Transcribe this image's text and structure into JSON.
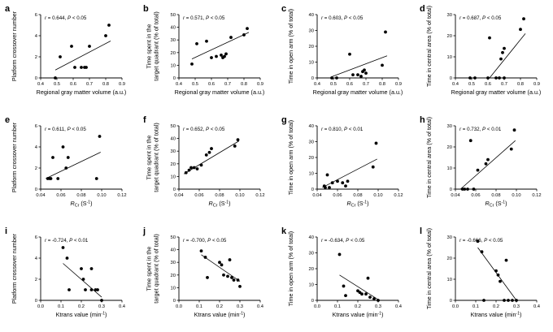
{
  "chart_data": [
    {
      "letter": "a",
      "type": "scatter",
      "stat": "r = 0.644, P < 0.05",
      "ylabel": [
        "Platform crossover number"
      ],
      "xlabel": "Regional gray matter volume (a.u.)",
      "xlim": [
        0.4,
        0.9
      ],
      "ylim": [
        0,
        6
      ],
      "xticks": [
        "0.4",
        "0.5",
        "0.6",
        "0.7",
        "0.8",
        "0.9"
      ],
      "yticks": [
        "0",
        "2",
        "4",
        "6"
      ],
      "points": [
        [
          0.49,
          0
        ],
        [
          0.52,
          2
        ],
        [
          0.59,
          3
        ],
        [
          0.61,
          1
        ],
        [
          0.65,
          1
        ],
        [
          0.67,
          1
        ],
        [
          0.68,
          1
        ],
        [
          0.7,
          3
        ],
        [
          0.8,
          4
        ],
        [
          0.82,
          5
        ]
      ],
      "fit": [
        [
          0.49,
          0.75
        ],
        [
          0.83,
          3.5
        ]
      ]
    },
    {
      "letter": "b",
      "type": "scatter",
      "stat": "r = 0.571, P < 0.05",
      "ylabel": [
        "Time spent in the",
        "target quadrant (% of total)"
      ],
      "xlabel": "Regional gray matter volume (a.u.)",
      "xlim": [
        0.4,
        0.9
      ],
      "ylim": [
        0,
        50
      ],
      "xticks": [
        "0.4",
        "0.5",
        "0.6",
        "0.7",
        "0.8",
        "0.9"
      ],
      "yticks": [
        "0",
        "10",
        "20",
        "30",
        "40",
        "50"
      ],
      "points": [
        [
          0.48,
          11
        ],
        [
          0.51,
          27
        ],
        [
          0.57,
          29
        ],
        [
          0.6,
          16
        ],
        [
          0.63,
          17
        ],
        [
          0.66,
          18
        ],
        [
          0.67,
          16
        ],
        [
          0.68,
          17
        ],
        [
          0.69,
          19
        ],
        [
          0.72,
          32
        ],
        [
          0.8,
          34
        ],
        [
          0.82,
          39
        ]
      ],
      "fit": [
        [
          0.48,
          15
        ],
        [
          0.83,
          36
        ]
      ]
    },
    {
      "letter": "c",
      "type": "scatter",
      "stat": "r = 0.603, P < 0.05",
      "ylabel": [
        "Time in open arm (% of total)"
      ],
      "xlabel": "Regional gray matter volume (a.u.)",
      "xlim": [
        0.4,
        0.9
      ],
      "ylim": [
        0,
        40
      ],
      "xticks": [
        "0.4",
        "0.5",
        "0.6",
        "0.7",
        "0.8",
        "0.9"
      ],
      "yticks": [
        "0",
        "10",
        "20",
        "30",
        "40"
      ],
      "points": [
        [
          0.49,
          0
        ],
        [
          0.52,
          0
        ],
        [
          0.6,
          15
        ],
        [
          0.62,
          2
        ],
        [
          0.65,
          2
        ],
        [
          0.67,
          1
        ],
        [
          0.68,
          4
        ],
        [
          0.69,
          5
        ],
        [
          0.7,
          3
        ],
        [
          0.8,
          8
        ],
        [
          0.82,
          29
        ]
      ],
      "fit": [
        [
          0.49,
          0.8
        ],
        [
          0.83,
          14
        ]
      ]
    },
    {
      "letter": "d",
      "type": "scatter",
      "stat": "r = 0.687, P < 0.05",
      "ylabel": [
        "Time in central area (% of total)"
      ],
      "xlabel": "Regional gray matter volume (a.u.)",
      "xlim": [
        0.4,
        0.9
      ],
      "ylim": [
        0,
        30
      ],
      "xticks": [
        "0.4",
        "0.5",
        "0.6",
        "0.7",
        "0.8",
        "0.9"
      ],
      "yticks": [
        "0",
        "10",
        "20",
        "30"
      ],
      "points": [
        [
          0.49,
          0
        ],
        [
          0.52,
          0
        ],
        [
          0.6,
          0
        ],
        [
          0.61,
          19
        ],
        [
          0.65,
          0
        ],
        [
          0.67,
          0
        ],
        [
          0.68,
          9
        ],
        [
          0.69,
          12
        ],
        [
          0.7,
          0
        ],
        [
          0.7,
          14
        ],
        [
          0.8,
          23
        ],
        [
          0.82,
          28
        ]
      ],
      "fit": [
        [
          0.61,
          0
        ],
        [
          0.83,
          21
        ]
      ]
    },
    {
      "letter": "e",
      "type": "scatter",
      "stat": "r = 0.611, P < 0.05",
      "ylabel": [
        "Platform crossover number"
      ],
      "xlabel": "R_Cr (S-1)",
      "xlim": [
        0.04,
        0.12
      ],
      "ylim": [
        0,
        6
      ],
      "xticks": [
        "0.04",
        "0.06",
        "0.08",
        "0.10",
        "0.12"
      ],
      "yticks": [
        "0",
        "2",
        "4",
        "6"
      ],
      "points": [
        [
          0.047,
          1
        ],
        [
          0.049,
          1
        ],
        [
          0.05,
          1
        ],
        [
          0.052,
          3
        ],
        [
          0.057,
          1
        ],
        [
          0.062,
          4
        ],
        [
          0.065,
          2
        ],
        [
          0.067,
          3
        ],
        [
          0.095,
          1
        ],
        [
          0.098,
          5
        ]
      ],
      "fit": [
        [
          0.045,
          1
        ],
        [
          0.099,
          3.5
        ]
      ]
    },
    {
      "letter": "f",
      "type": "scatter",
      "stat": "r = 0.652, P < 0.05",
      "ylabel": [
        "Time spent in the",
        "target quadrant (% of total)"
      ],
      "xlabel": "R_Cr (S-1)",
      "xlim": [
        0.04,
        0.12
      ],
      "ylim": [
        0,
        50
      ],
      "xticks": [
        "0.04",
        "0.06",
        "0.08",
        "0.10",
        "0.12"
      ],
      "yticks": [
        "0",
        "10",
        "20",
        "30",
        "40",
        "50"
      ],
      "points": [
        [
          0.047,
          13
        ],
        [
          0.05,
          15
        ],
        [
          0.052,
          17
        ],
        [
          0.055,
          17
        ],
        [
          0.058,
          16
        ],
        [
          0.062,
          19
        ],
        [
          0.067,
          27
        ],
        [
          0.07,
          29
        ],
        [
          0.072,
          32
        ],
        [
          0.095,
          34
        ],
        [
          0.098,
          39
        ]
      ],
      "fit": [
        [
          0.045,
          12
        ],
        [
          0.099,
          38
        ]
      ]
    },
    {
      "letter": "g",
      "type": "scatter",
      "stat": "r = 0.810, P < 0.01",
      "ylabel": [
        "Time in open arm (% of total)"
      ],
      "xlabel": "R_Cr (S-1)",
      "xlim": [
        0.04,
        0.12
      ],
      "ylim": [
        0,
        40
      ],
      "xticks": [
        "0.04",
        "0.06",
        "0.08",
        "0.10",
        "0.12"
      ],
      "yticks": [
        "0",
        "10",
        "20",
        "30",
        "40"
      ],
      "points": [
        [
          0.047,
          2
        ],
        [
          0.048,
          1
        ],
        [
          0.05,
          9
        ],
        [
          0.052,
          1
        ],
        [
          0.055,
          4
        ],
        [
          0.06,
          5
        ],
        [
          0.065,
          4
        ],
        [
          0.068,
          2
        ],
        [
          0.07,
          5
        ],
        [
          0.095,
          14
        ],
        [
          0.098,
          29
        ]
      ],
      "fit": [
        [
          0.045,
          1
        ],
        [
          0.099,
          19
        ]
      ]
    },
    {
      "letter": "h",
      "type": "scatter",
      "stat": "r = 0.732, P < 0.01",
      "ylabel": [
        "Time in central area (% of total)"
      ],
      "xlabel": "R_Cr (S-1)",
      "xlim": [
        0.04,
        0.12
      ],
      "ylim": [
        0,
        30
      ],
      "xticks": [
        "0.04",
        "0.06",
        "0.08",
        "0.10",
        "0.12"
      ],
      "yticks": [
        "0",
        "10",
        "20",
        "30"
      ],
      "points": [
        [
          0.047,
          0
        ],
        [
          0.049,
          0
        ],
        [
          0.052,
          0
        ],
        [
          0.055,
          23
        ],
        [
          0.058,
          0
        ],
        [
          0.062,
          9
        ],
        [
          0.07,
          12
        ],
        [
          0.072,
          14
        ],
        [
          0.095,
          19
        ],
        [
          0.098,
          28
        ]
      ],
      "fit": [
        [
          0.045,
          0
        ],
        [
          0.099,
          23
        ]
      ]
    },
    {
      "letter": "i",
      "type": "scatter",
      "stat": "r = -0.724, P < 0.01",
      "ylabel": [
        "Platform crossover number"
      ],
      "xlabel": "Ktrans value (min-1)",
      "xlim": [
        0,
        0.4
      ],
      "ylim": [
        0,
        6
      ],
      "xticks": [
        "0.0",
        "0.1",
        "0.2",
        "0.3",
        "0.4"
      ],
      "yticks": [
        "0",
        "2",
        "4",
        "6"
      ],
      "points": [
        [
          0.11,
          5
        ],
        [
          0.13,
          4
        ],
        [
          0.14,
          1
        ],
        [
          0.2,
          3
        ],
        [
          0.21,
          2
        ],
        [
          0.22,
          1
        ],
        [
          0.25,
          3
        ],
        [
          0.25,
          1
        ],
        [
          0.27,
          1
        ],
        [
          0.28,
          1
        ],
        [
          0.3,
          0
        ]
      ],
      "fit": [
        [
          0.11,
          3.5
        ],
        [
          0.3,
          0.3
        ]
      ]
    },
    {
      "letter": "j",
      "type": "scatter",
      "stat": "r = -0.700, P < 0.05",
      "ylabel": [
        "Time spent in the",
        "target quadrant (% of total)"
      ],
      "xlabel": "Ktrans value (min-1)",
      "xlim": [
        0,
        0.4
      ],
      "ylim": [
        0,
        50
      ],
      "xticks": [
        "0.0",
        "0.1",
        "0.2",
        "0.3",
        "0.4"
      ],
      "yticks": [
        "0",
        "10",
        "20",
        "30",
        "40",
        "50"
      ],
      "points": [
        [
          0.11,
          39
        ],
        [
          0.13,
          34
        ],
        [
          0.14,
          18
        ],
        [
          0.2,
          30
        ],
        [
          0.21,
          28
        ],
        [
          0.22,
          20
        ],
        [
          0.24,
          19
        ],
        [
          0.25,
          32
        ],
        [
          0.26,
          18
        ],
        [
          0.27,
          16
        ],
        [
          0.29,
          16
        ],
        [
          0.3,
          11
        ]
      ],
      "fit": [
        [
          0.11,
          36
        ],
        [
          0.3,
          15
        ]
      ]
    },
    {
      "letter": "k",
      "type": "scatter",
      "stat": "r = -0.634, P < 0.05",
      "ylabel": [
        "Time in open arm (% of total)"
      ],
      "xlabel": "Ktrans value (min-1)",
      "xlim": [
        0,
        0.4
      ],
      "ylim": [
        0,
        40
      ],
      "xticks": [
        "0.0",
        "0.1",
        "0.2",
        "0.3",
        "0.4"
      ],
      "yticks": [
        "0",
        "10",
        "20",
        "30",
        "40"
      ],
      "points": [
        [
          0.11,
          29
        ],
        [
          0.13,
          9
        ],
        [
          0.14,
          3
        ],
        [
          0.2,
          6
        ],
        [
          0.21,
          5
        ],
        [
          0.22,
          4
        ],
        [
          0.24,
          4
        ],
        [
          0.25,
          14
        ],
        [
          0.26,
          2
        ],
        [
          0.28,
          1
        ],
        [
          0.3,
          0
        ]
      ],
      "fit": [
        [
          0.11,
          16
        ],
        [
          0.3,
          0.5
        ]
      ]
    },
    {
      "letter": "l",
      "type": "scatter",
      "stat": "r = -0.666, P < 0.05",
      "ylabel": [
        "Time in central area (% of total)"
      ],
      "xlabel": "Ktrans value (min-1)",
      "xlim": [
        0,
        0.4
      ],
      "ylim": [
        0,
        30
      ],
      "xticks": [
        "0.0",
        "0.1",
        "0.2",
        "0.3",
        "0.4"
      ],
      "yticks": [
        "0",
        "10",
        "20",
        "30"
      ],
      "points": [
        [
          0.11,
          28
        ],
        [
          0.13,
          23
        ],
        [
          0.14,
          0
        ],
        [
          0.2,
          14
        ],
        [
          0.21,
          12
        ],
        [
          0.22,
          9
        ],
        [
          0.24,
          0
        ],
        [
          0.25,
          19
        ],
        [
          0.26,
          0
        ],
        [
          0.28,
          0
        ],
        [
          0.3,
          0
        ]
      ],
      "fit": [
        [
          0.11,
          25
        ],
        [
          0.3,
          0
        ]
      ]
    }
  ]
}
